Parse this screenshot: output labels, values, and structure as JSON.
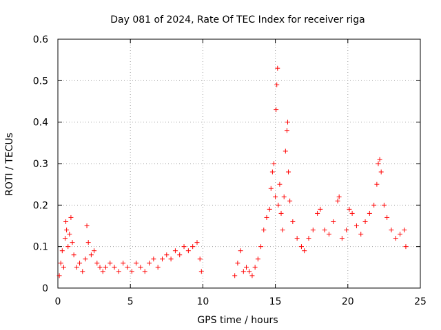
{
  "chart_data": {
    "type": "scatter",
    "title": "Day 081 of 2024, Rate Of TEC Index for receiver riga",
    "xlabel": "GPS time / hours",
    "ylabel": "ROTI / TECUs",
    "xlim": [
      0,
      25
    ],
    "ylim": [
      0,
      0.6
    ],
    "xticks": [
      0,
      5,
      10,
      15,
      20,
      25
    ],
    "xtick_labels": [
      "0",
      "5",
      "10",
      "15",
      "20",
      "25"
    ],
    "yticks": [
      0,
      0.1,
      0.2,
      0.3,
      0.4,
      0.5,
      0.6
    ],
    "ytick_labels": [
      "0",
      "0.1",
      "0.2",
      "0.3",
      "0.4",
      "0.5",
      "0.6"
    ],
    "grid": true,
    "marker": "+",
    "color": "#ff0000",
    "series": [
      {
        "name": "ROTI",
        "points": [
          [
            0.1,
            0.03
          ],
          [
            0.2,
            0.06
          ],
          [
            0.3,
            0.09
          ],
          [
            0.4,
            0.05
          ],
          [
            0.5,
            0.12
          ],
          [
            0.55,
            0.16
          ],
          [
            0.6,
            0.14
          ],
          [
            0.7,
            0.1
          ],
          [
            0.8,
            0.13
          ],
          [
            0.9,
            0.17
          ],
          [
            1.0,
            0.11
          ],
          [
            1.1,
            0.08
          ],
          [
            1.3,
            0.05
          ],
          [
            1.5,
            0.06
          ],
          [
            1.7,
            0.04
          ],
          [
            1.9,
            0.07
          ],
          [
            2.0,
            0.15
          ],
          [
            2.1,
            0.11
          ],
          [
            2.3,
            0.08
          ],
          [
            2.5,
            0.09
          ],
          [
            2.7,
            0.06
          ],
          [
            2.9,
            0.05
          ],
          [
            3.1,
            0.04
          ],
          [
            3.3,
            0.05
          ],
          [
            3.6,
            0.06
          ],
          [
            3.9,
            0.05
          ],
          [
            4.2,
            0.04
          ],
          [
            4.5,
            0.06
          ],
          [
            4.8,
            0.05
          ],
          [
            5.1,
            0.04
          ],
          [
            5.4,
            0.06
          ],
          [
            5.7,
            0.05
          ],
          [
            6.0,
            0.04
          ],
          [
            6.3,
            0.06
          ],
          [
            6.6,
            0.07
          ],
          [
            6.9,
            0.05
          ],
          [
            7.2,
            0.07
          ],
          [
            7.5,
            0.08
          ],
          [
            7.8,
            0.07
          ],
          [
            8.1,
            0.09
          ],
          [
            8.4,
            0.08
          ],
          [
            8.7,
            0.1
          ],
          [
            9.0,
            0.09
          ],
          [
            9.3,
            0.1
          ],
          [
            9.6,
            0.11
          ],
          [
            9.8,
            0.07
          ],
          [
            9.9,
            0.04
          ],
          [
            12.2,
            0.03
          ],
          [
            12.4,
            0.06
          ],
          [
            12.6,
            0.09
          ],
          [
            12.8,
            0.04
          ],
          [
            13.0,
            0.05
          ],
          [
            13.2,
            0.04
          ],
          [
            13.4,
            0.03
          ],
          [
            13.6,
            0.05
          ],
          [
            13.8,
            0.07
          ],
          [
            14.0,
            0.1
          ],
          [
            14.2,
            0.14
          ],
          [
            14.4,
            0.17
          ],
          [
            14.6,
            0.19
          ],
          [
            14.7,
            0.24
          ],
          [
            14.8,
            0.28
          ],
          [
            14.9,
            0.3
          ],
          [
            15.0,
            0.22
          ],
          [
            15.05,
            0.43
          ],
          [
            15.1,
            0.49
          ],
          [
            15.15,
            0.53
          ],
          [
            15.2,
            0.2
          ],
          [
            15.3,
            0.25
          ],
          [
            15.4,
            0.18
          ],
          [
            15.5,
            0.14
          ],
          [
            15.6,
            0.22
          ],
          [
            15.7,
            0.33
          ],
          [
            15.8,
            0.38
          ],
          [
            15.85,
            0.4
          ],
          [
            15.9,
            0.28
          ],
          [
            16.0,
            0.21
          ],
          [
            16.2,
            0.16
          ],
          [
            16.5,
            0.12
          ],
          [
            16.8,
            0.1
          ],
          [
            17.0,
            0.09
          ],
          [
            17.3,
            0.12
          ],
          [
            17.6,
            0.14
          ],
          [
            17.9,
            0.18
          ],
          [
            18.1,
            0.19
          ],
          [
            18.4,
            0.14
          ],
          [
            18.7,
            0.13
          ],
          [
            19.0,
            0.16
          ],
          [
            19.3,
            0.21
          ],
          [
            19.4,
            0.22
          ],
          [
            19.6,
            0.12
          ],
          [
            19.9,
            0.14
          ],
          [
            20.1,
            0.19
          ],
          [
            20.3,
            0.18
          ],
          [
            20.6,
            0.15
          ],
          [
            20.9,
            0.13
          ],
          [
            21.2,
            0.16
          ],
          [
            21.5,
            0.18
          ],
          [
            21.8,
            0.2
          ],
          [
            22.0,
            0.25
          ],
          [
            22.1,
            0.3
          ],
          [
            22.2,
            0.31
          ],
          [
            22.3,
            0.28
          ],
          [
            22.5,
            0.2
          ],
          [
            22.7,
            0.17
          ],
          [
            23.0,
            0.14
          ],
          [
            23.3,
            0.12
          ],
          [
            23.6,
            0.13
          ],
          [
            23.9,
            0.14
          ],
          [
            24.0,
            0.1
          ]
        ]
      }
    ]
  }
}
